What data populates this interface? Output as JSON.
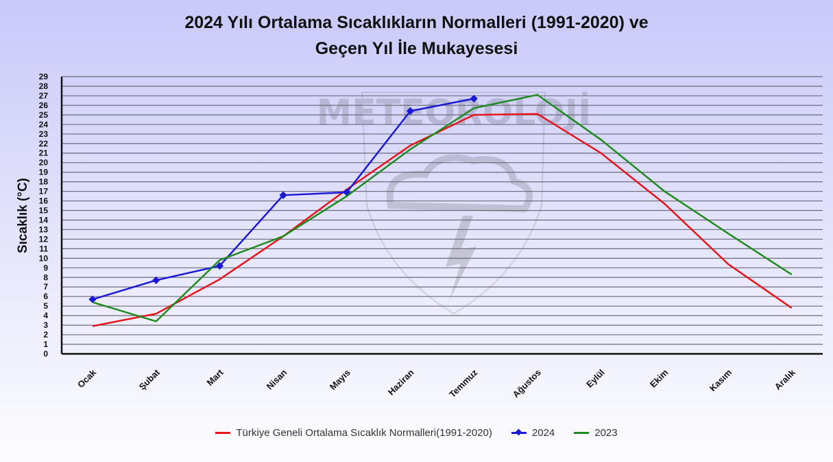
{
  "chart_data": {
    "type": "line",
    "title_line1": "2024 Yılı Ortalama Sıcaklıkların Normalleri (1991-2020) ve",
    "title_line2": "Geçen Yıl İle Mukayesesi",
    "xlabel": "",
    "ylabel": "Sıcaklık (°C)",
    "ylim": [
      0,
      29
    ],
    "ytick_step": 1,
    "grid": true,
    "legend_placement": "bottom",
    "watermark": "METEOROLOJİ",
    "categories": [
      "Ocak",
      "Şubat",
      "Mart",
      "Nisan",
      "Mayıs",
      "Haziran",
      "Temmuz",
      "Ağustos",
      "Eylül",
      "Ekim",
      "Kasım",
      "Aralık"
    ],
    "series": [
      {
        "name": "Türkiye Geneli Ortalama Sıcaklık Normalleri(1991-2020)",
        "color": "#e8141c",
        "marker": "none",
        "values": [
          2.9,
          4.2,
          7.8,
          12.3,
          17.2,
          21.8,
          25.0,
          25.1,
          21.0,
          15.7,
          9.4,
          4.8
        ]
      },
      {
        "name": "2024",
        "color": "#1a1ad6",
        "marker": "diamond",
        "values": [
          5.7,
          7.7,
          9.2,
          16.6,
          16.9,
          25.4,
          26.7,
          null,
          null,
          null,
          null,
          null
        ]
      },
      {
        "name": "2023",
        "color": "#1f8a1f",
        "marker": "none",
        "values": [
          5.4,
          3.4,
          9.8,
          12.3,
          16.5,
          21.4,
          25.7,
          27.1,
          22.4,
          17.0,
          12.6,
          8.3
        ]
      }
    ]
  }
}
